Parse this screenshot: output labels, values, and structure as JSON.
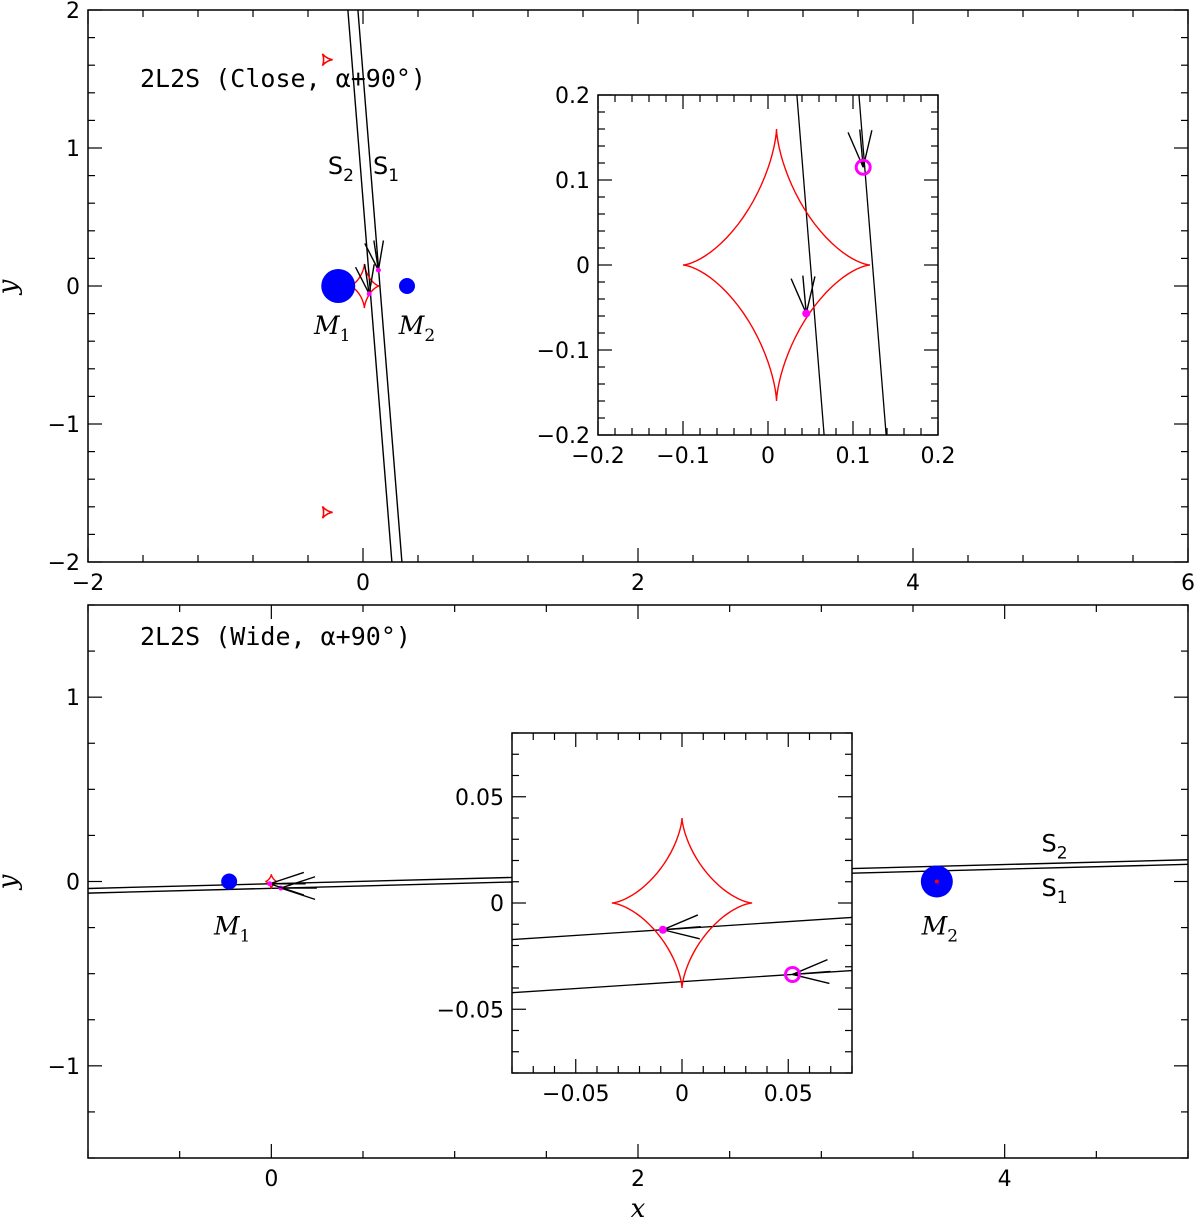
{
  "figure": {
    "x_axis_label": "x",
    "y_axis_label": "y"
  },
  "colors": {
    "caustic": "#ff0000",
    "lens": "#0000ff",
    "source": "#ff00ff",
    "line": "#000000"
  },
  "chart_data": [
    {
      "name": "close",
      "type": "scatter",
      "title": "2L2S (Close, α+90°)",
      "xlim": [
        -2,
        6
      ],
      "ylim": [
        -2,
        2
      ],
      "xticks": [
        -2,
        0,
        2,
        4,
        6
      ],
      "yticks": [
        -2,
        -1,
        0,
        1,
        2
      ],
      "xtick_labels": [
        "−2",
        "0",
        "2",
        "4",
        "6"
      ],
      "ytick_labels": [
        "−2",
        "−1",
        "0",
        "1",
        "2"
      ],
      "lenses": [
        {
          "label": "M",
          "sub": "1",
          "x": -0.18,
          "y": 0.0,
          "size": "large"
        },
        {
          "label": "M",
          "sub": "2",
          "x": 0.32,
          "y": 0.0,
          "size": "small"
        }
      ],
      "central_caustic": {
        "x": 0.01,
        "y": 0.0,
        "half_width": 0.11,
        "half_height": 0.16
      },
      "planetary_caustics": [
        {
          "x": -0.27,
          "y": 1.64,
          "size": 0.05
        },
        {
          "x": -0.27,
          "y": -1.64,
          "size": 0.05
        }
      ],
      "trajectories": [
        {
          "name": "S",
          "sub": "1",
          "x_at_y0": 0.123,
          "slope_dx_dy": -0.08,
          "source_x": 0.112,
          "source_y": 0.115
        },
        {
          "name": "S",
          "sub": "2",
          "x_at_y0": 0.05,
          "slope_dx_dy": -0.08,
          "source_x": 0.045,
          "source_y": -0.057
        }
      ],
      "trajectory_label_y": 0.81,
      "inset": {
        "xlim": [
          -0.2,
          0.2
        ],
        "ylim": [
          -0.2,
          0.2
        ],
        "xticks": [
          -0.2,
          -0.1,
          0,
          0.1,
          0.2
        ],
        "yticks": [
          -0.2,
          -0.1,
          0,
          0.1,
          0.2
        ],
        "xtick_labels": [
          "−0.2",
          "−0.1",
          "0",
          "0.1",
          "0.2"
        ],
        "ytick_labels": [
          "−0.2",
          "−0.1",
          "0",
          "0.1",
          "0.2"
        ]
      }
    },
    {
      "name": "wide",
      "type": "scatter",
      "title": "2L2S (Wide, α+90°)",
      "xlim": [
        -1,
        5
      ],
      "ylim": [
        -1.5,
        1.5
      ],
      "xticks": [
        0,
        2,
        4
      ],
      "yticks": [
        -1,
        0,
        1
      ],
      "xtick_labels": [
        "0",
        "2",
        "4"
      ],
      "ytick_labels": [
        "−1",
        "0",
        "1"
      ],
      "lenses": [
        {
          "label": "M",
          "sub": "1",
          "x": -0.23,
          "y": 0.0,
          "size": "small"
        },
        {
          "label": "M",
          "sub": "2",
          "x": 3.63,
          "y": 0.0,
          "size": "large"
        }
      ],
      "central_caustic": {
        "x": 0.0,
        "y": 0.0,
        "half_width": 0.033,
        "half_height": 0.04
      },
      "planetary_caustics": [],
      "trajectories": [
        {
          "name": "S",
          "sub": "1",
          "y_at_x0": -0.037,
          "slope_dy_dx": 0.026,
          "source_x": 0.052,
          "source_y": -0.036
        },
        {
          "name": "S",
          "sub": "2",
          "y_at_x0": -0.012,
          "slope_dy_dx": 0.026,
          "source_x": -0.009,
          "source_y": -0.012
        }
      ],
      "trajectory_label_x": 4.25,
      "inset": {
        "xlim": [
          -0.08,
          0.08
        ],
        "ylim": [
          -0.08,
          0.08
        ],
        "xticks": [
          -0.05,
          0,
          0.05
        ],
        "yticks": [
          -0.05,
          0,
          0.05
        ],
        "xtick_labels": [
          "−0.05",
          "0",
          "0.05"
        ],
        "ytick_labels": [
          "−0.05",
          "0",
          "0.05"
        ]
      }
    }
  ]
}
